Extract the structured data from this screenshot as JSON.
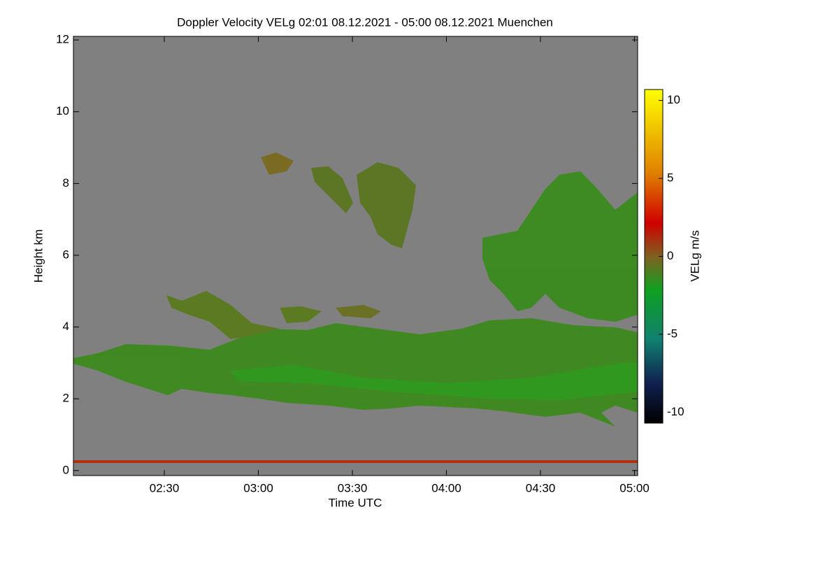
{
  "chart_data": {
    "type": "heatmap",
    "title": "Doppler Velocity VELg   02:01 08.12.2021 - 05:00 08.12.2021 Muenchen",
    "xlabel": "Time UTC",
    "ylabel": "Height km",
    "xlim": [
      121,
      301
    ],
    "xticks": [
      {
        "value": 150,
        "label": "02:30"
      },
      {
        "value": 180,
        "label": "03:00"
      },
      {
        "value": 210,
        "label": "03:30"
      },
      {
        "value": 240,
        "label": "04:00"
      },
      {
        "value": 270,
        "label": "04:30"
      },
      {
        "value": 300,
        "label": "05:00"
      }
    ],
    "ylim": [
      -0.14,
      12.1
    ],
    "yticks": [
      0,
      2,
      4,
      6,
      8,
      10,
      12
    ],
    "colorbar": {
      "label": "VELg m/s",
      "lim": [
        -10.7,
        10.7
      ],
      "ticks": [
        -10,
        -5,
        0,
        5,
        10
      ]
    }
  }
}
